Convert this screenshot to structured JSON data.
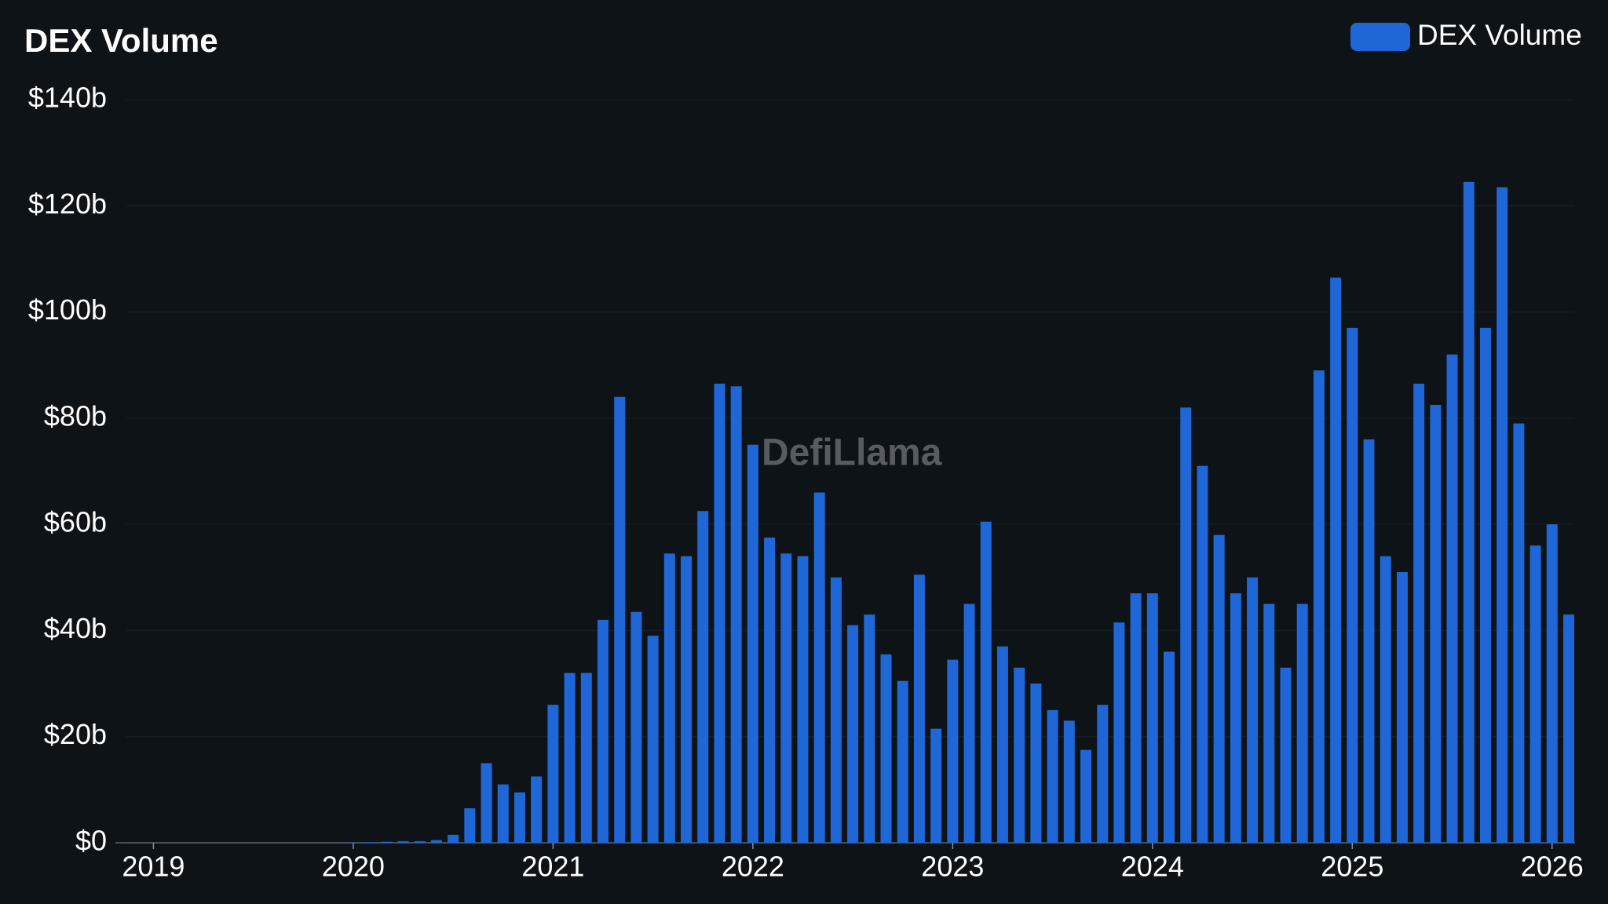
{
  "chart_data": {
    "type": "bar",
    "title": "DEX Volume",
    "watermark": "DefiLlama",
    "x": [
      "2020-01",
      "2020-02",
      "2020-03",
      "2020-04",
      "2020-05",
      "2020-06",
      "2020-07",
      "2020-08",
      "2020-09",
      "2020-10",
      "2020-11",
      "2020-12",
      "2021-01",
      "2021-02",
      "2021-03",
      "2021-04",
      "2021-05",
      "2021-06",
      "2021-07",
      "2021-08",
      "2021-09",
      "2021-10",
      "2021-11",
      "2021-12",
      "2022-01",
      "2022-02",
      "2022-03",
      "2022-04",
      "2022-05",
      "2022-06",
      "2022-07",
      "2022-08",
      "2022-09",
      "2022-10",
      "2022-11",
      "2022-12",
      "2023-01",
      "2023-02",
      "2023-03",
      "2023-04",
      "2023-05",
      "2023-06",
      "2023-07",
      "2023-08",
      "2023-09",
      "2023-10",
      "2023-11",
      "2023-12",
      "2024-01",
      "2024-02",
      "2024-03",
      "2024-04",
      "2024-05",
      "2024-06",
      "2024-07",
      "2024-08",
      "2024-09",
      "2024-10",
      "2024-11",
      "2024-12",
      "2025-01",
      "2025-02",
      "2025-03",
      "2025-04",
      "2025-05",
      "2025-06",
      "2025-07",
      "2025-08",
      "2025-09",
      "2025-10",
      "2025-11",
      "2025-12",
      "2026-01",
      "2026-02"
    ],
    "series": [
      {
        "name": "DEX Volume",
        "color": "#1f66d6",
        "values": [
          0.05,
          0.1,
          0.2,
          0.3,
          0.3,
          0.5,
          1.5,
          6.5,
          15,
          11,
          9.5,
          12.5,
          26,
          32,
          32,
          42,
          84,
          43.5,
          39,
          54.5,
          54,
          62.5,
          86.5,
          86,
          75,
          57.5,
          54.5,
          54,
          66,
          50,
          41,
          43,
          35.5,
          30.5,
          50.5,
          21.5,
          34.5,
          45,
          60.5,
          37,
          33,
          30,
          25,
          23,
          17.5,
          26,
          41.5,
          47,
          47,
          36,
          82,
          71,
          58,
          47,
          50,
          45,
          33,
          45,
          89,
          106.5,
          97,
          76,
          54,
          51,
          86.5,
          82.5,
          92,
          124.5,
          97,
          123.5,
          79,
          56,
          60,
          43
        ]
      }
    ],
    "xlim": [
      "2018-11",
      "2026-02"
    ],
    "xticks": [
      "2019",
      "2020",
      "2021",
      "2022",
      "2023",
      "2024",
      "2025",
      "2026"
    ],
    "ylim": [
      0,
      140
    ],
    "yticks": [
      {
        "value": 0,
        "label": "$0"
      },
      {
        "value": 20,
        "label": "$20b"
      },
      {
        "value": 40,
        "label": "$40b"
      },
      {
        "value": 60,
        "label": "$60b"
      },
      {
        "value": 80,
        "label": "$80b"
      },
      {
        "value": 100,
        "label": "$100b"
      },
      {
        "value": 120,
        "label": "$120b"
      },
      {
        "value": 140,
        "label": "$140b"
      }
    ],
    "grid": true,
    "legend": "top-right"
  }
}
